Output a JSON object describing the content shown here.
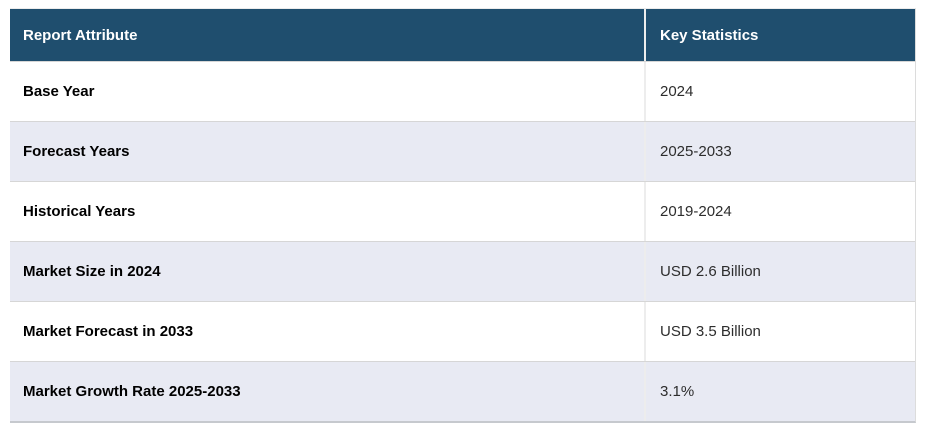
{
  "table": {
    "headers": [
      "Report Attribute",
      "Key Statistics"
    ],
    "rows": [
      {
        "attribute": "Base Year",
        "value": "2024"
      },
      {
        "attribute": "Forecast Years",
        "value": "2025-2033"
      },
      {
        "attribute": "Historical Years",
        "value": "2019-2024"
      },
      {
        "attribute": "Market Size in 2024",
        "value": "USD 2.6 Billion"
      },
      {
        "attribute": "Market Forecast in 2033",
        "value": "USD 3.5 Billion"
      },
      {
        "attribute": "Market Growth Rate 2025-2033",
        "value": "3.1%"
      }
    ],
    "colors": {
      "header_bg": "#1f4e6e",
      "header_text": "#ffffff",
      "row_bg": "#ffffff",
      "row_alt_bg": "#e8eaf3",
      "row_border": "#d6d6d6",
      "column_divider": "#ededed"
    }
  }
}
